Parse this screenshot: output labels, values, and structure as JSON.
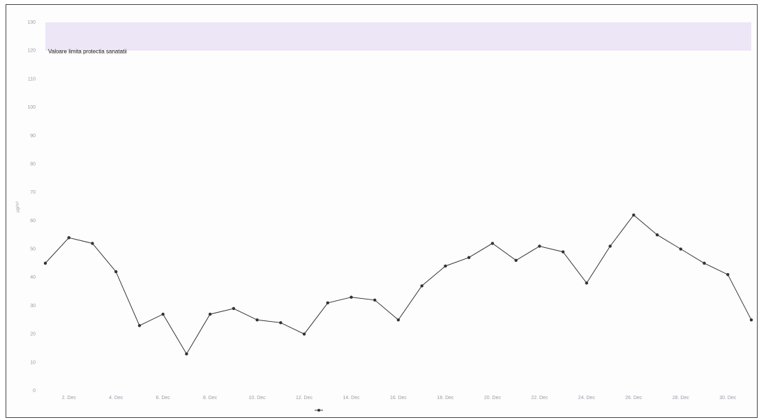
{
  "chart_data": {
    "type": "line",
    "title": "",
    "ylabel": "µg/m³",
    "xlabel": "",
    "ylim": [
      0,
      130
    ],
    "yticks": [
      0,
      10,
      20,
      30,
      40,
      50,
      60,
      70,
      80,
      90,
      100,
      110,
      120,
      130
    ],
    "xticks": [
      {
        "day": 2,
        "label": "2. Dec"
      },
      {
        "day": 4,
        "label": "4. Dec"
      },
      {
        "day": 6,
        "label": "6. Dec"
      },
      {
        "day": 8,
        "label": "8. Dec"
      },
      {
        "day": 10,
        "label": "10. Dec"
      },
      {
        "day": 12,
        "label": "12. Dec"
      },
      {
        "day": 14,
        "label": "14. Dec"
      },
      {
        "day": 16,
        "label": "16. Dec"
      },
      {
        "day": 18,
        "label": "18. Dec"
      },
      {
        "day": 20,
        "label": "20. Dec"
      },
      {
        "day": 22,
        "label": "22. Dec"
      },
      {
        "day": 24,
        "label": "24. Dec"
      },
      {
        "day": 26,
        "label": "26. Dec"
      },
      {
        "day": 28,
        "label": "28. Dec"
      },
      {
        "day": 30,
        "label": "30. Dec"
      }
    ],
    "xlim": [
      1,
      31
    ],
    "band": {
      "from": 120,
      "to": 130,
      "label": "Valoare limita protectia sanatatii",
      "color": "#ede6f7"
    },
    "series": [
      {
        "name": "",
        "color": "#333333",
        "x": [
          1,
          2,
          3,
          4,
          5,
          6,
          7,
          8,
          9,
          10,
          11,
          12,
          13,
          14,
          15,
          16,
          17,
          18,
          19,
          20,
          21,
          22,
          23,
          24,
          25,
          26,
          27,
          28,
          29,
          30,
          31
        ],
        "values": [
          45,
          54,
          52,
          42,
          23,
          27,
          13,
          27,
          29,
          25,
          24,
          20,
          31,
          33,
          32,
          25,
          37,
          44,
          47,
          52,
          46,
          51,
          49,
          38,
          51,
          62,
          55,
          50,
          45,
          41,
          25
        ]
      }
    ],
    "grid": false,
    "legend_position": "bottom"
  }
}
